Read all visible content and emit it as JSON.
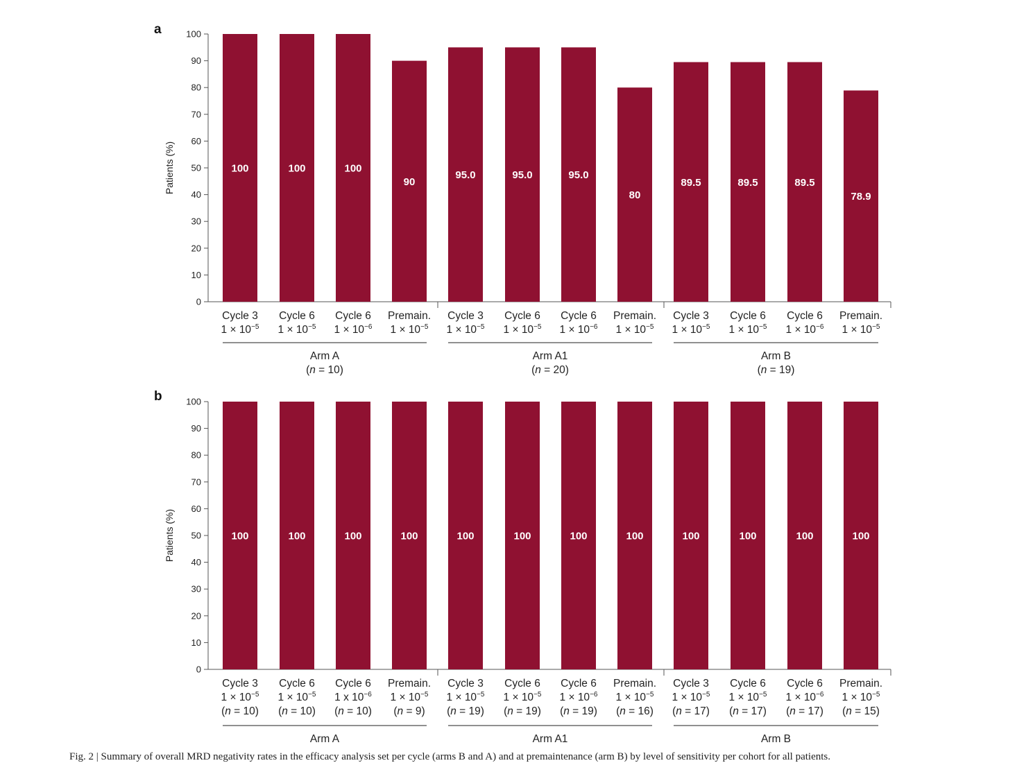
{
  "chart_data": [
    {
      "panel": "a",
      "type": "bar",
      "ylabel": "Patients (%)",
      "ylim": [
        0,
        100
      ],
      "yticks": [
        "0",
        "10",
        "20",
        "30",
        "40",
        "50",
        "60",
        "70",
        "80",
        "90",
        "100"
      ],
      "categories": [
        {
          "line1": "Cycle 3",
          "line2": "1 × 10",
          "exp": "−5"
        },
        {
          "line1": "Cycle 6",
          "line2": "1 × 10",
          "exp": "−5"
        },
        {
          "line1": "Cycle 6",
          "line2": "1 × 10",
          "exp": "−6"
        },
        {
          "line1": "Premain.",
          "line2": "1 × 10",
          "exp": "−5"
        },
        {
          "line1": "Cycle 3",
          "line2": "1 × 10",
          "exp": "−5"
        },
        {
          "line1": "Cycle 6",
          "line2": "1 × 10",
          "exp": "−5"
        },
        {
          "line1": "Cycle 6",
          "line2": "1 × 10",
          "exp": "−6"
        },
        {
          "line1": "Premain.",
          "line2": "1 × 10",
          "exp": "−5"
        },
        {
          "line1": "Cycle 3",
          "line2": "1 × 10",
          "exp": "−5"
        },
        {
          "line1": "Cycle 6",
          "line2": "1 × 10",
          "exp": "−5"
        },
        {
          "line1": "Cycle 6",
          "line2": "1 × 10",
          "exp": "−6"
        },
        {
          "line1": "Premain.",
          "line2": "1 × 10",
          "exp": "−5"
        }
      ],
      "values": [
        100,
        100,
        100,
        90,
        95.0,
        95.0,
        95.0,
        80,
        89.5,
        89.5,
        89.5,
        78.9
      ],
      "value_labels": [
        "100",
        "100",
        "100",
        "90",
        "95.0",
        "95.0",
        "95.0",
        "80",
        "89.5",
        "89.5",
        "89.5",
        "78.9"
      ],
      "groups": [
        {
          "name": "Arm A",
          "n_prefix": "(",
          "n_italic": "n",
          "n_suffix": " = 10)",
          "start": 0,
          "end": 3
        },
        {
          "name": "Arm A1",
          "n_prefix": "(",
          "n_italic": "n",
          "n_suffix": " = 20)",
          "start": 4,
          "end": 7
        },
        {
          "name": "Arm B",
          "n_prefix": "(",
          "n_italic": "n",
          "n_suffix": " = 19)",
          "start": 8,
          "end": 11
        }
      ]
    },
    {
      "panel": "b",
      "type": "bar",
      "ylabel": "Patients (%)",
      "ylim": [
        0,
        100
      ],
      "yticks": [
        "0",
        "10",
        "20",
        "30",
        "40",
        "50",
        "60",
        "70",
        "80",
        "90",
        "100"
      ],
      "categories": [
        {
          "line1": "Cycle 3",
          "line2": "1 × 10",
          "exp": "−5",
          "n": " = 10)"
        },
        {
          "line1": "Cycle 6",
          "line2": "1 × 10",
          "exp": "−5",
          "n": " = 10)"
        },
        {
          "line1": "Cycle 6",
          "line2": "1 x 10",
          "exp": "−6",
          "n": " = 10)"
        },
        {
          "line1": "Premain.",
          "line2": "1 × 10",
          "exp": "−5",
          "n": " = 9)"
        },
        {
          "line1": "Cycle 3",
          "line2": "1 × 10",
          "exp": "−5",
          "n": " = 19)"
        },
        {
          "line1": "Cycle 6",
          "line2": "1 × 10",
          "exp": "−5",
          "n": " = 19)"
        },
        {
          "line1": "Cycle 6",
          "line2": "1 × 10",
          "exp": "−6",
          "n": " = 19)"
        },
        {
          "line1": "Premain.",
          "line2": "1 × 10",
          "exp": "−5",
          "n": " = 16)"
        },
        {
          "line1": "Cycle 3",
          "line2": "1 × 10",
          "exp": "−5",
          "n": " = 17)"
        },
        {
          "line1": "Cycle 6",
          "line2": "1 × 10",
          "exp": "−5",
          "n": " = 17)"
        },
        {
          "line1": "Cycle 6",
          "line2": "1 × 10",
          "exp": "−6",
          "n": " = 17)"
        },
        {
          "line1": "Premain.",
          "line2": "1 × 10",
          "exp": "−5",
          "n": " = 15)"
        }
      ],
      "values": [
        100,
        100,
        100,
        100,
        100,
        100,
        100,
        100,
        100,
        100,
        100,
        100
      ],
      "value_labels": [
        "100",
        "100",
        "100",
        "100",
        "100",
        "100",
        "100",
        "100",
        "100",
        "100",
        "100",
        "100"
      ],
      "groups": [
        {
          "name": "Arm A",
          "start": 0,
          "end": 3
        },
        {
          "name": "Arm A1",
          "start": 4,
          "end": 7
        },
        {
          "name": "Arm B",
          "start": 8,
          "end": 11
        }
      ]
    }
  ],
  "colors": {
    "bar": "#8f1131",
    "bar_label": "#ffffff",
    "axis": "#555555"
  },
  "caption": "Fig. 2 | Summary of overall MRD negativity rates in the efficacy analysis set per cycle (arms B and A) and at premaintenance (arm B) by level of sensitivity per cohort for all patients."
}
